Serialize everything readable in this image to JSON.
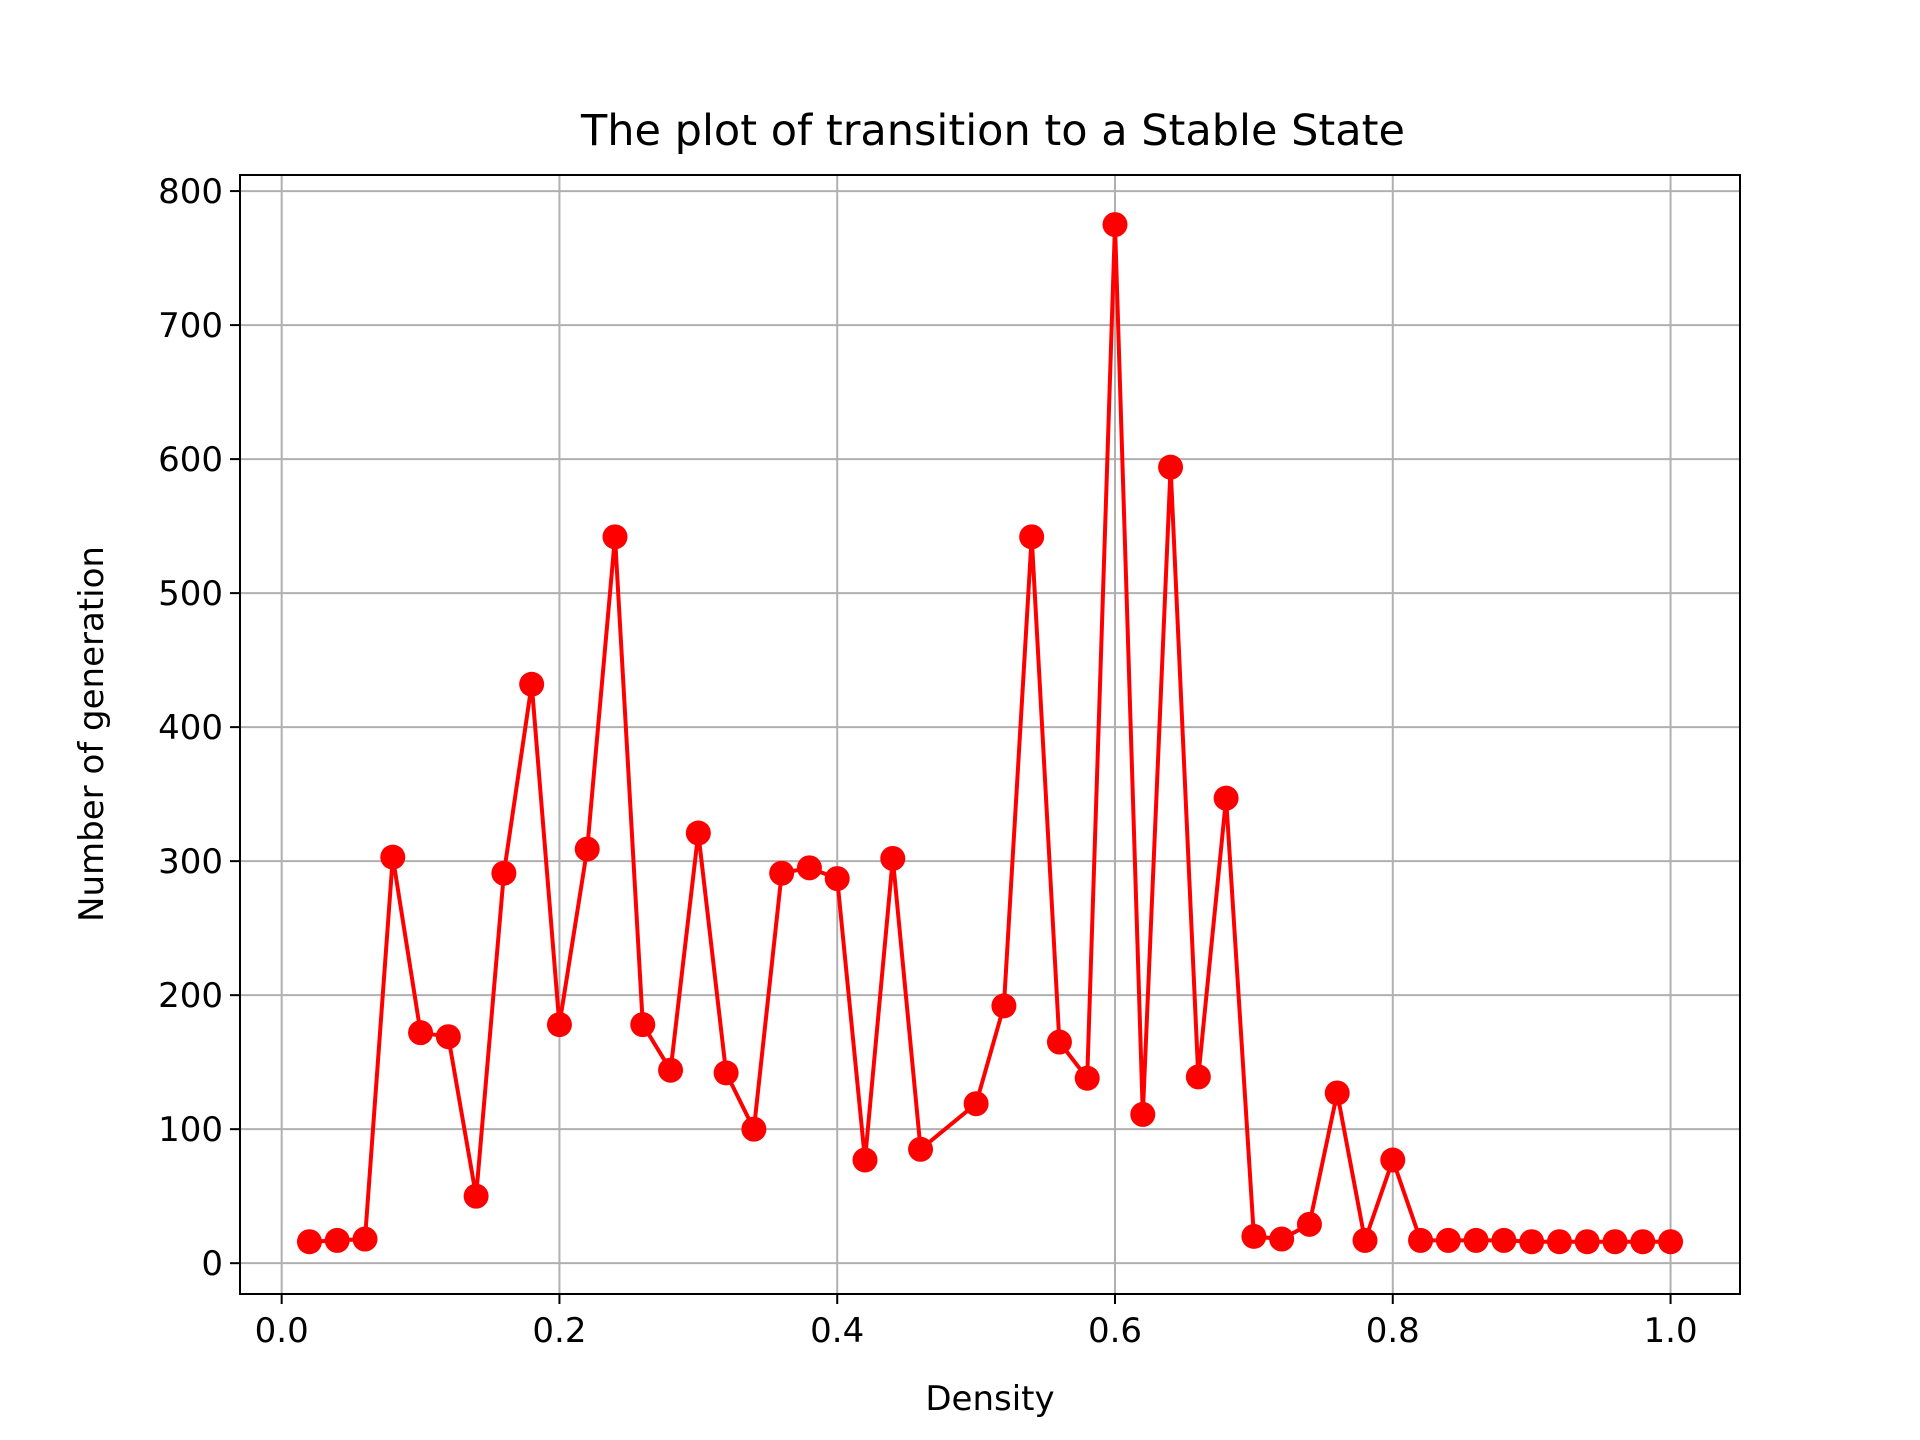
{
  "chart_data": {
    "type": "line",
    "title": "The plot of transition to a Stable State",
    "xlabel": "Density",
    "ylabel": "Number of generation",
    "xlim": [
      -0.03,
      1.05
    ],
    "ylim": [
      -23,
      812
    ],
    "x_ticks": [
      "0.0",
      "0.2",
      "0.4",
      "0.6",
      "0.8",
      "1.0"
    ],
    "y_ticks": [
      "0",
      "100",
      "200",
      "300",
      "400",
      "500",
      "600",
      "700",
      "800"
    ],
    "grid": true,
    "legend": "none",
    "series": [
      {
        "color": "#ff0000",
        "marker": "circle",
        "x": [
          0.02,
          0.04,
          0.06,
          0.08,
          0.1,
          0.12,
          0.14,
          0.16,
          0.18,
          0.2,
          0.22,
          0.24,
          0.26,
          0.28,
          0.3,
          0.32,
          0.34,
          0.36,
          0.38,
          0.4,
          0.42,
          0.44,
          0.46,
          0.5,
          0.52,
          0.54,
          0.56,
          0.58,
          0.6,
          0.62,
          0.64,
          0.66,
          0.68,
          0.7,
          0.72,
          0.74,
          0.76,
          0.78,
          0.8,
          0.82,
          0.84,
          0.86,
          0.88,
          0.9,
          0.92,
          0.94,
          0.96,
          0.98,
          1.0
        ],
        "y": [
          16,
          17,
          18,
          303,
          172,
          169,
          50,
          291,
          432,
          178,
          309,
          542,
          178,
          144,
          321,
          142,
          100,
          291,
          295,
          287,
          77,
          302,
          85,
          119,
          192,
          542,
          165,
          138,
          775,
          111,
          594,
          139,
          347,
          20,
          18,
          29,
          127,
          17,
          77,
          17,
          17,
          17,
          17,
          16,
          16,
          16,
          16,
          16,
          16
        ]
      }
    ]
  }
}
